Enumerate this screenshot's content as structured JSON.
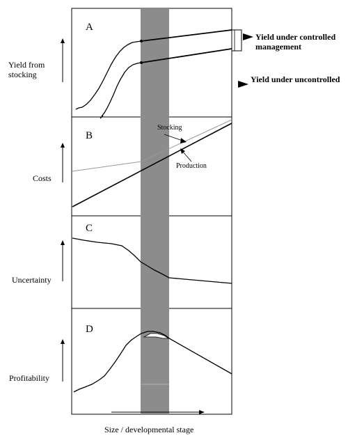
{
  "panels": [
    {
      "letter": "A",
      "ylabel": "Yield from stocking"
    },
    {
      "letter": "B",
      "ylabel": "Costs"
    },
    {
      "letter": "C",
      "ylabel": "Uncertainty"
    },
    {
      "letter": "D",
      "ylabel": "Profitability"
    }
  ],
  "annotations": {
    "yield_controlled": "Yield under controlled management",
    "yield_uncontrolled": "Yield under uncontrolled",
    "stocking": "Stocking",
    "production": "Production"
  },
  "xlabel": "Size / developmental stage",
  "colors": {
    "shaded_band": "#8c8c8c",
    "stocking_line": "#999999",
    "ink": "#000000"
  }
}
